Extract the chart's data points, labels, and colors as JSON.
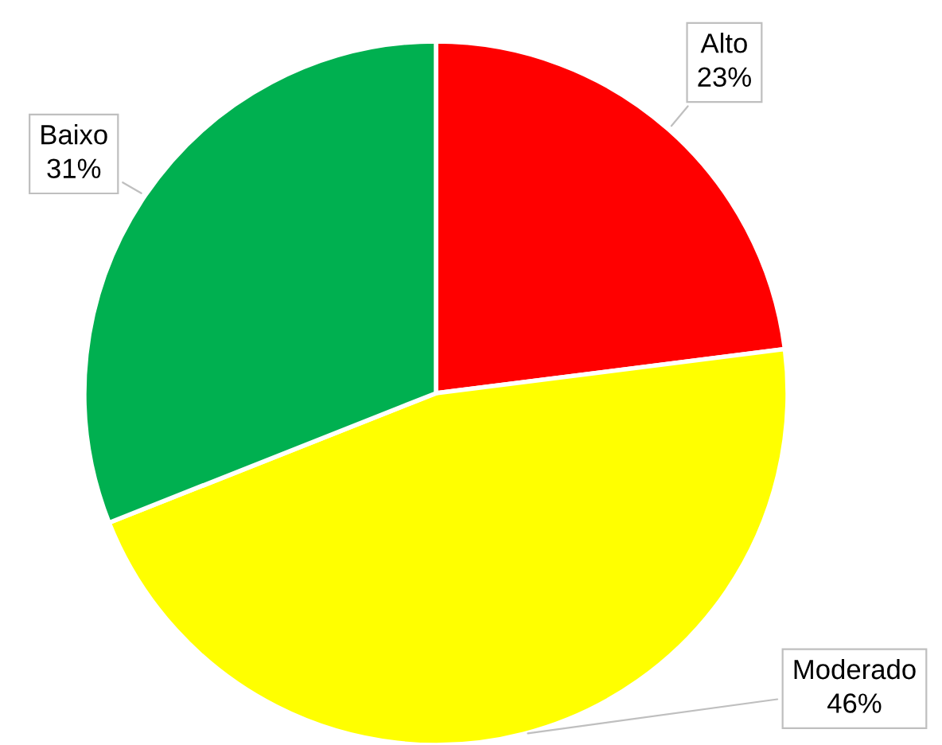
{
  "chart_data": {
    "type": "pie",
    "categories": [
      "Alto",
      "Moderado",
      "Baixo"
    ],
    "values": [
      23,
      46,
      31
    ],
    "colors": [
      "#ff0000",
      "#ffff00",
      "#00b050"
    ],
    "value_labels": [
      "23%",
      "46%",
      "31%"
    ],
    "legend": false
  }
}
